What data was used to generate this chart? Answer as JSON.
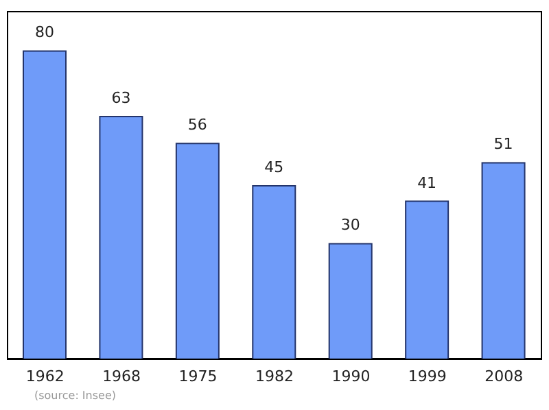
{
  "chart_data": {
    "type": "bar",
    "categories": [
      "1962",
      "1968",
      "1975",
      "1982",
      "1990",
      "1999",
      "2008"
    ],
    "values": [
      80,
      63,
      56,
      45,
      30,
      41,
      51
    ],
    "color": "#6f9bf9",
    "data_labels": true,
    "annotations": [
      "(source: Insee)"
    ]
  }
}
